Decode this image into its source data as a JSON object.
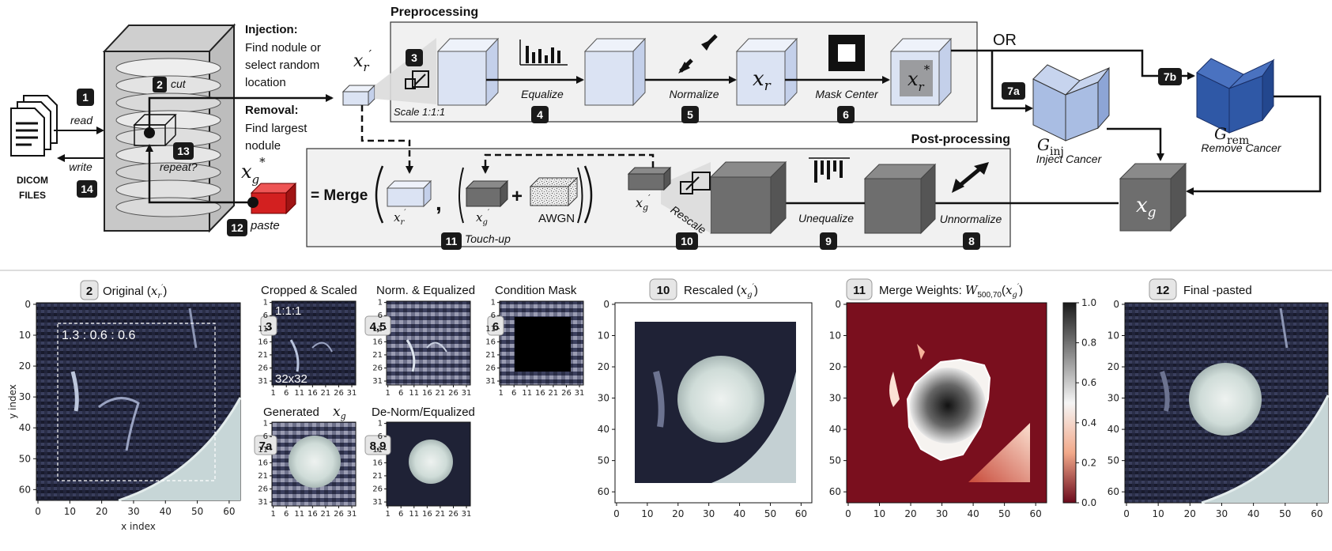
{
  "pipeline": {
    "dicom": {
      "label_line1": "DICOM",
      "label_line2": "FILES"
    },
    "io": {
      "read": "read",
      "write": "write",
      "cut": "cut",
      "repeat": "repeat?",
      "paste": "paste"
    },
    "injection": {
      "title": "Injection:",
      "line1": "Find nodule or",
      "line2": "select random",
      "line3": "location"
    },
    "removal": {
      "title": "Removal:",
      "line1": "Find largest",
      "line2": "nodule"
    },
    "xr_prime": "x′r",
    "xg_star": "x*g",
    "preprocessing": {
      "title": "Preprocessing",
      "scale": "Scale 1:1:1",
      "equalize": "Equalize",
      "normalize": "Normalize",
      "xr": "xr",
      "mask_center": "Mask Center",
      "xr_star": "x*r"
    },
    "or_label": "OR",
    "gan_inject": {
      "symbol": "G",
      "sub": "inj",
      "caption": "Inject Cancer"
    },
    "gan_remove": {
      "symbol": "G",
      "sub": "rem",
      "caption": "Remove Cancer"
    },
    "xg": "xg",
    "postprocessing": {
      "title": "Post-processing",
      "merge": "= Merge",
      "awgn": "AWGN",
      "touchup": "Touch-up",
      "rescale": "Rescale",
      "unequalize": "Unequalize",
      "unnormalize": "Unnormalize"
    },
    "badges": [
      "1",
      "2",
      "3",
      "4",
      "5",
      "6",
      "7a",
      "7b",
      "8",
      "9",
      "10",
      "11",
      "12",
      "13",
      "14"
    ]
  },
  "panels": {
    "original": {
      "badge": "2",
      "title": "Original (x′r)",
      "ratio": "1.3 : 0.6 : 0.6",
      "xlabel": "x index",
      "ylabel": "y index",
      "xticks": [
        "0",
        "10",
        "20",
        "30",
        "40",
        "50",
        "60"
      ],
      "yticks": [
        "0",
        "10",
        "20",
        "30",
        "40",
        "50",
        "60"
      ]
    },
    "cropped": {
      "badge": "3",
      "title": "Cropped & Scaled",
      "top_label": "1:1:1",
      "bottom_label": "32x32"
    },
    "normeq": {
      "badge": "4,5",
      "title": "Norm. & Equalized"
    },
    "condmask": {
      "badge": "6",
      "title": "Condition Mask"
    },
    "generated": {
      "badge": "7a",
      "title": "Generated",
      "var": "xg"
    },
    "denorm": {
      "badge": "8,9",
      "title": "De-Norm/Equalized"
    },
    "small_xticks": [
      "1",
      "6",
      "11",
      "16",
      "21",
      "26",
      "31"
    ],
    "small_yticks": [
      "1",
      "6",
      "11",
      "16",
      "21",
      "26",
      "31"
    ],
    "rescaled": {
      "badge": "10",
      "title": "Rescaled (x′g)",
      "xticks": [
        "0",
        "10",
        "20",
        "30",
        "40",
        "50",
        "60"
      ],
      "yticks": [
        "0",
        "10",
        "20",
        "30",
        "40",
        "50",
        "60"
      ]
    },
    "merge": {
      "badge": "11",
      "title": "Merge Weights: W500,70(x′g)",
      "xticks": [
        "0",
        "10",
        "20",
        "30",
        "40",
        "50",
        "60"
      ],
      "yticks": [
        "0",
        "10",
        "20",
        "30",
        "40",
        "50",
        "60"
      ],
      "colorbar": [
        "1.0",
        "0.8",
        "0.6",
        "0.4",
        "0.2",
        "0.0"
      ]
    },
    "final": {
      "badge": "12",
      "title": "Final -pasted",
      "xticks": [
        "0",
        "10",
        "20",
        "30",
        "40",
        "50",
        "60"
      ],
      "yticks": [
        "0",
        "10",
        "20",
        "30",
        "40",
        "50",
        "60"
      ]
    }
  },
  "colors": {
    "box_fill": "#f1f1f1",
    "light_cube": "#dbe3f3",
    "dark_cube": "#6e6e6e",
    "red_cube": "#d32020",
    "gan_light": "#a9bde3",
    "gan_dark": "#2f58a6",
    "ct_dark": "#1c1f33",
    "heat_red": "#7a0f1e"
  }
}
